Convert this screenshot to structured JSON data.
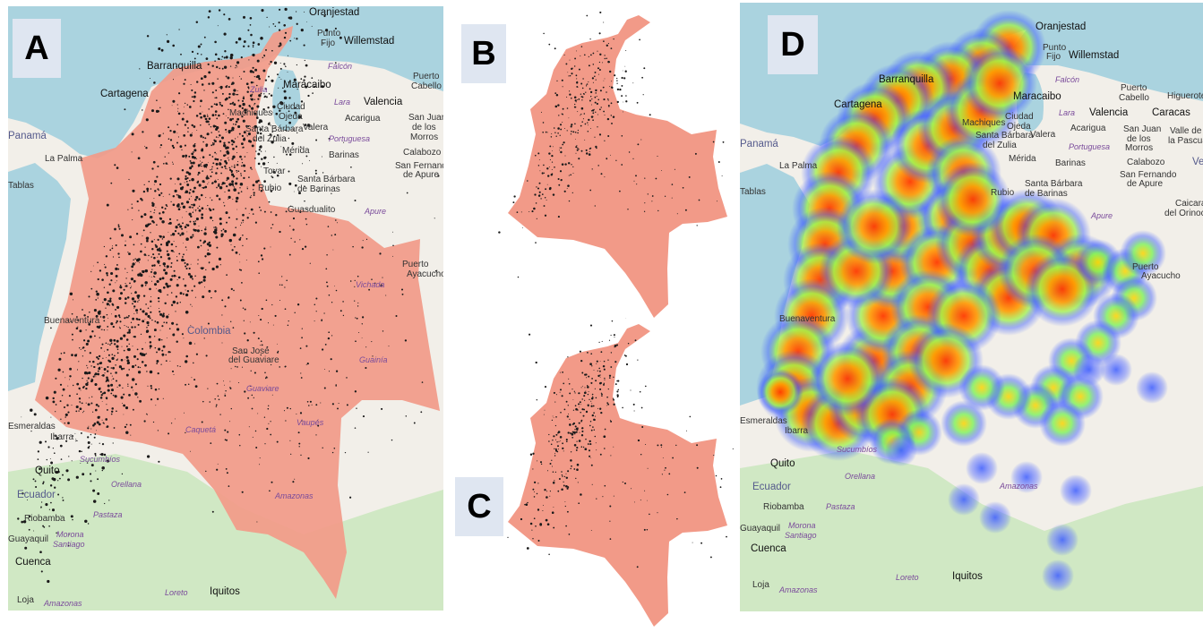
{
  "panels": {
    "a": {
      "label": "A"
    },
    "b": {
      "label": "B"
    },
    "c": {
      "label": "C"
    },
    "d": {
      "label": "D"
    }
  },
  "colors": {
    "sea": "#aad3df",
    "land": "#f2efe9",
    "forest": "#d0e8c4",
    "country_fill": "#f29a88",
    "cluster": "#1a1a1a",
    "badge_bg": "#dfe6f1",
    "heat_low": "#3b5bff",
    "heat_mid": "#7cf25a",
    "heat_high": "#ff5a00"
  },
  "panel_a_labels": [
    "Oranjestad",
    "Punto",
    "Fijo",
    "Willemstad",
    "Barranquilla",
    "Falcón",
    "Puerto",
    "Cabello",
    "Cartagena",
    "Zulia",
    "Maracaibo",
    "Valencia",
    "Lara",
    "Machiques",
    "Ciudad",
    "Ojeda",
    "Acarigua",
    "San Juan",
    "de los",
    "Morros",
    "Panamá",
    "Santa Bárbara",
    "del Zulia",
    "Valera",
    "Portuguesa",
    "La Palma",
    "Mérida",
    "Barinas",
    "Calabozo",
    "San Fernando",
    "de Apure",
    "Tovar",
    "Rubio",
    "Santa Bárbara",
    "de Barinas",
    "Tablas",
    "Guasdualito",
    "Apure",
    "Puerto",
    "Ayacucho",
    "Buenaventura",
    "Vichada",
    "Colombia",
    "San José",
    "del Guaviare",
    "Guainía",
    "Guaviare",
    "Vaupés",
    "Caquetá",
    "Esmeraldas",
    "Ibarra",
    "Sucumbíos",
    "Quito",
    "Orellana",
    "Ecuador",
    "Amazonas",
    "Riobamba",
    "Pastaza",
    "Guayaquil",
    "Morona",
    "Santiago",
    "Cuenca",
    "Iquitos",
    "Loreto",
    "Loja",
    "Amazonas"
  ],
  "panel_d_labels": [
    "Oranjestad",
    "Punto",
    "Fijo",
    "Willemstad",
    "Falcón",
    "Puerto",
    "Cabello",
    "Barranquilla",
    "Higuerote",
    "Cartagena",
    "Maracaibo",
    "Valencia",
    "Caracas",
    "Lara",
    "Ciudad",
    "Ojeda",
    "San Juan",
    "de los",
    "Morros",
    "Valle de",
    "la Pascua",
    "Panamá",
    "Machiques",
    "Acarigua",
    "Santa Bárbara",
    "del Zulia",
    "Valera",
    "Portuguesa",
    "Calabozo",
    "La Palma",
    "Mérida",
    "Barinas",
    "San Fernando",
    "de Apure",
    "Ve",
    "Tablas",
    "Rubio",
    "Santa Bárbara",
    "de Barinas",
    "Caicara",
    "del Orinoco",
    "Apure",
    "Puerto",
    "Ayacucho",
    "Buenaventura",
    "Esmeraldas",
    "Ibarra",
    "Sucumbíos",
    "Quito",
    "Orellana",
    "Amazonas",
    "Ecuador",
    "Riobamba",
    "Pastaza",
    "Guayaquil",
    "Morona",
    "Santiago",
    "Cuenca",
    "Iquitos",
    "Loreto",
    "Loja",
    "Amazonas"
  ]
}
